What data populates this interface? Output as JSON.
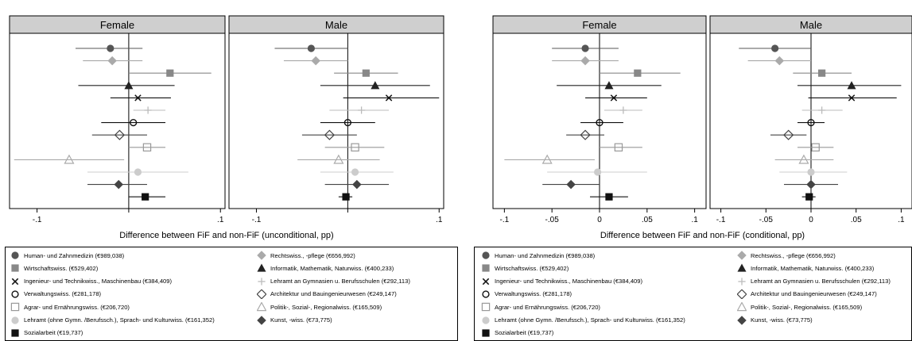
{
  "chart_data": [
    {
      "type": "scatter",
      "panels": [
        "Female",
        "Male"
      ],
      "xlabel": "Difference between FiF and non-FiF (unconditional, pp)",
      "xlim": [
        -0.13,
        0.105
      ],
      "xticks": [
        -0.1,
        0,
        0.1
      ],
      "xtick_labels": [
        "-.1",
        "",
        ".1"
      ],
      "legend_position": "bottom",
      "grid": false,
      "panel_data": [
        {
          "est": [
            -0.02,
            -0.018,
            0.045,
            0.0,
            0.01,
            0.021,
            0.005,
            -0.01,
            0.02,
            -0.065,
            0.01,
            -0.011,
            0.018
          ],
          "lo": [
            -0.058,
            -0.05,
            0.0,
            -0.055,
            -0.02,
            0.005,
            -0.03,
            -0.04,
            0.0,
            -0.125,
            -0.045,
            -0.045,
            0.0
          ],
          "hi": [
            0.015,
            0.015,
            0.09,
            0.05,
            0.046,
            0.04,
            0.04,
            0.02,
            0.04,
            -0.005,
            0.065,
            0.02,
            0.04
          ]
        },
        {
          "est": [
            -0.04,
            -0.035,
            0.02,
            0.03,
            0.045,
            0.015,
            0.0,
            -0.02,
            0.008,
            -0.01,
            0.008,
            0.01,
            -0.002
          ],
          "lo": [
            -0.08,
            -0.07,
            -0.015,
            -0.03,
            -0.005,
            -0.02,
            -0.03,
            -0.05,
            -0.025,
            -0.055,
            -0.03,
            -0.025,
            -0.01
          ],
          "hi": [
            0.0,
            0.0,
            0.055,
            0.09,
            0.1,
            0.045,
            0.03,
            0.01,
            0.04,
            0.035,
            0.05,
            0.045,
            0.005
          ]
        }
      ]
    },
    {
      "type": "scatter",
      "panels": [
        "Female",
        "Male"
      ],
      "xlabel": "Difference between FiF and non-FiF (conditional, pp)",
      "xlim": [
        -0.112,
        0.112
      ],
      "xticks": [
        -0.1,
        -0.05,
        0,
        0.05,
        0.1
      ],
      "xtick_labels": [
        "-.1",
        "-.05",
        "0",
        ".05",
        ".1"
      ],
      "legend_position": "bottom",
      "grid": false,
      "panel_data": [
        {
          "est": [
            -0.015,
            -0.015,
            0.04,
            0.01,
            0.015,
            0.025,
            0.0,
            -0.015,
            0.02,
            -0.055,
            -0.002,
            -0.03,
            0.01
          ],
          "lo": [
            -0.05,
            -0.05,
            0.0,
            -0.045,
            -0.015,
            0.005,
            -0.02,
            -0.035,
            0.0,
            -0.1,
            -0.055,
            -0.06,
            -0.01
          ],
          "hi": [
            0.02,
            0.02,
            0.085,
            0.065,
            0.05,
            0.045,
            0.025,
            0.005,
            0.045,
            -0.005,
            0.05,
            0.0,
            0.03
          ]
        },
        {
          "est": [
            -0.04,
            -0.035,
            0.012,
            0.045,
            0.045,
            0.012,
            0.0,
            -0.025,
            0.005,
            -0.008,
            0.0,
            0.0,
            -0.002
          ],
          "lo": [
            -0.08,
            -0.07,
            -0.02,
            -0.015,
            -0.003,
            -0.01,
            -0.015,
            -0.045,
            -0.015,
            -0.04,
            -0.035,
            -0.03,
            -0.01
          ],
          "hi": [
            0.0,
            0.0,
            0.045,
            0.1,
            0.095,
            0.035,
            0.015,
            -0.005,
            0.025,
            0.025,
            0.04,
            0.03,
            0.005
          ]
        }
      ]
    }
  ],
  "legend": [
    {
      "label": "Human- und Zahnmedizin (€989,038)",
      "marker": "circle-filled",
      "color": "#555555"
    },
    {
      "label": "Rechtswiss., -pflege (€656,992)",
      "marker": "diamond-filled",
      "color": "#aaaaaa"
    },
    {
      "label": "Wirtschaftswiss. (€529,402)",
      "marker": "square-filled",
      "color": "#888888"
    },
    {
      "label": "Informatik, Mathematik, Naturwiss. (€400,233)",
      "marker": "triangle-filled",
      "color": "#222222"
    },
    {
      "label": "Ingenieur- und Technikwiss., Maschinenbau (€384,409)",
      "marker": "x",
      "color": "#111111"
    },
    {
      "label": "Lehramt an Gymnasien u. Berufsschulen (€292,113)",
      "marker": "plus",
      "color": "#bbbbbb"
    },
    {
      "label": "Verwaltungswiss. (€281,178)",
      "marker": "circle-hollow",
      "color": "#111111"
    },
    {
      "label": "Architektur und Bauingenieurwesen (€249,147)",
      "marker": "diamond-hollow",
      "color": "#444444"
    },
    {
      "label": "Agrar- und Ernährungswiss. (€206,720)",
      "marker": "square-hollow",
      "color": "#999999"
    },
    {
      "label": "Politik-, Sozial-, Regionalwiss. (€165,509)",
      "marker": "triangle-hollow",
      "color": "#aaaaaa"
    },
    {
      "label": "Lehramt (ohne Gymn. /Berufssch.), Sprach- und Kulturwiss. (€161,352)",
      "marker": "circle-filled",
      "color": "#cccccc"
    },
    {
      "label": "Kunst, -wiss. (€73,775)",
      "marker": "diamond-filled",
      "color": "#444444"
    },
    {
      "label": "Sozialarbeit (€19,737)",
      "marker": "square-filled",
      "color": "#111111"
    }
  ]
}
